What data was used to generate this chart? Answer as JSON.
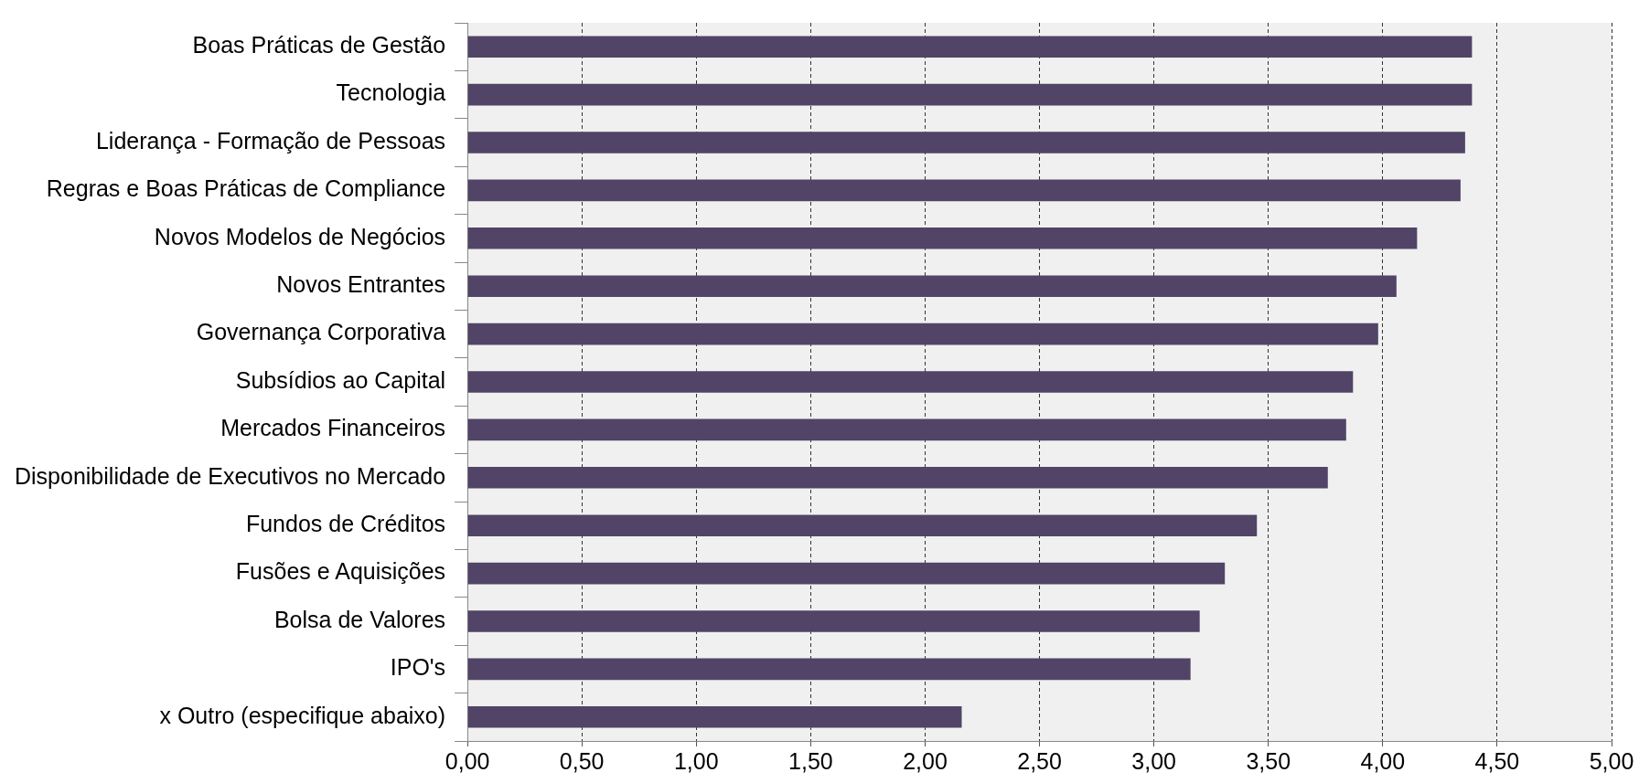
{
  "chart_data": {
    "type": "bar",
    "orientation": "horizontal",
    "categories": [
      "Boas Práticas de Gestão",
      "Tecnologia",
      "Liderança - Formação de Pessoas",
      "Regras e Boas Práticas de Compliance",
      "Novos Modelos de Negócios",
      "Novos Entrantes",
      "Governança Corporativa",
      "Subsídios ao Capital",
      "Mercados Financeiros",
      "Disponibilidade de Executivos no Mercado",
      "Fundos de Créditos",
      "Fusões e Aquisições",
      "Bolsa de Valores",
      "IPO's",
      "x Outro (especifique abaixo)"
    ],
    "values": [
      4.39,
      4.39,
      4.36,
      4.34,
      4.15,
      4.06,
      3.98,
      3.87,
      3.84,
      3.76,
      3.45,
      3.31,
      3.2,
      3.16,
      2.16
    ],
    "color": "#514466",
    "xlim": [
      0,
      5
    ],
    "xticks": [
      {
        "value": 0,
        "label": "0,00"
      },
      {
        "value": 0.5,
        "label": "0,50"
      },
      {
        "value": 1,
        "label": "1,00"
      },
      {
        "value": 1.5,
        "label": "1,50"
      },
      {
        "value": 2,
        "label": "2,00"
      },
      {
        "value": 2.5,
        "label": "2,50"
      },
      {
        "value": 3,
        "label": "3,00"
      },
      {
        "value": 3.5,
        "label": "3,50"
      },
      {
        "value": 4,
        "label": "4,00"
      },
      {
        "value": 4.5,
        "label": "4,50"
      },
      {
        "value": 5,
        "label": "5,00"
      }
    ],
    "grid": "x",
    "legend": false
  }
}
